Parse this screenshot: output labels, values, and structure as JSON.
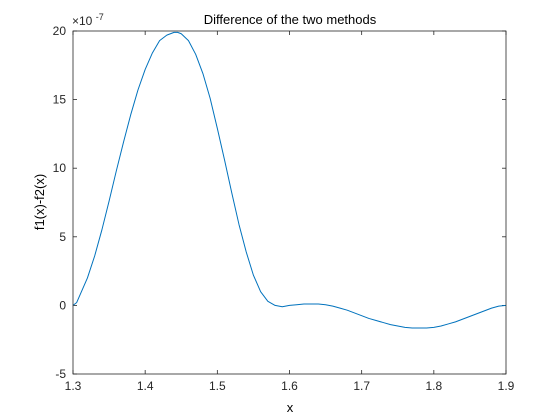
{
  "chart_data": {
    "type": "line",
    "title": "Difference of the two methods",
    "xlabel": "x",
    "ylabel": "f1(x)-f2(x)",
    "y_exponent_base": "×10",
    "y_exponent_power": "-7",
    "xlim": [
      1.3,
      1.9
    ],
    "ylim": [
      -5,
      20
    ],
    "x_ticks": [
      1.3,
      1.4,
      1.5,
      1.6,
      1.7,
      1.8,
      1.9
    ],
    "x_tick_labels": [
      "1.3",
      "1.4",
      "1.5",
      "1.6",
      "1.7",
      "1.8",
      "1.9"
    ],
    "y_ticks": [
      -5,
      0,
      5,
      10,
      15,
      20
    ],
    "y_tick_labels": [
      "-5",
      "0",
      "5",
      "10",
      "15",
      "20"
    ],
    "grid": false,
    "series": [
      {
        "color": "#0072bd",
        "x": [
          1.3,
          1.305,
          1.31,
          1.32,
          1.33,
          1.34,
          1.35,
          1.36,
          1.37,
          1.38,
          1.39,
          1.4,
          1.41,
          1.42,
          1.43,
          1.44,
          1.445,
          1.45,
          1.46,
          1.47,
          1.48,
          1.49,
          1.5,
          1.51,
          1.52,
          1.53,
          1.54,
          1.55,
          1.56,
          1.57,
          1.58,
          1.59,
          1.6,
          1.61,
          1.62,
          1.63,
          1.64,
          1.65,
          1.66,
          1.67,
          1.68,
          1.69,
          1.7,
          1.71,
          1.72,
          1.73,
          1.74,
          1.75,
          1.76,
          1.77,
          1.78,
          1.79,
          1.8,
          1.81,
          1.82,
          1.83,
          1.84,
          1.85,
          1.86,
          1.87,
          1.88,
          1.89,
          1.9
        ],
        "y": [
          0.0,
          0.2,
          0.8,
          2.0,
          3.6,
          5.5,
          7.6,
          9.8,
          11.9,
          13.9,
          15.7,
          17.2,
          18.4,
          19.3,
          19.7,
          19.9,
          19.9,
          19.8,
          19.3,
          18.3,
          16.9,
          15.1,
          12.9,
          10.6,
          8.2,
          5.9,
          3.9,
          2.2,
          1.0,
          0.3,
          0.0,
          -0.1,
          0.0,
          0.05,
          0.1,
          0.1,
          0.1,
          0.05,
          -0.05,
          -0.2,
          -0.35,
          -0.55,
          -0.75,
          -0.95,
          -1.1,
          -1.25,
          -1.4,
          -1.5,
          -1.6,
          -1.65,
          -1.65,
          -1.65,
          -1.6,
          -1.5,
          -1.35,
          -1.2,
          -1.0,
          -0.8,
          -0.6,
          -0.4,
          -0.2,
          -0.05,
          0.0
        ]
      }
    ]
  }
}
